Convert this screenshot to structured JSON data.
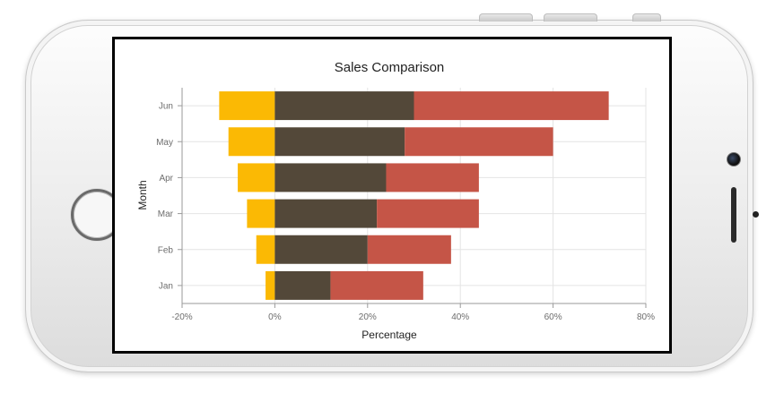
{
  "chart_data": {
    "type": "bar",
    "orientation": "horizontal",
    "stacked": true,
    "title": "Sales Comparison",
    "xlabel": "Percentage",
    "ylabel": "Month",
    "categories": [
      "Jan",
      "Feb",
      "Mar",
      "Apr",
      "May",
      "Jun"
    ],
    "xlim": [
      -20,
      80
    ],
    "x_ticks": [
      "-20%",
      "0%",
      "20%",
      "40%",
      "60%",
      "80%"
    ],
    "x_tick_values": [
      -20,
      0,
      20,
      40,
      60,
      80
    ],
    "grid": true,
    "legend": "none",
    "series": [
      {
        "values": [
          -2,
          -4,
          -6,
          -8,
          -10,
          -12
        ],
        "color": "#FBB904"
      },
      {
        "values": [
          12,
          20,
          22,
          24,
          28,
          30
        ],
        "color": "#534839"
      },
      {
        "values": [
          20,
          18,
          22,
          20,
          32,
          42
        ],
        "color": "#C55547"
      }
    ]
  }
}
